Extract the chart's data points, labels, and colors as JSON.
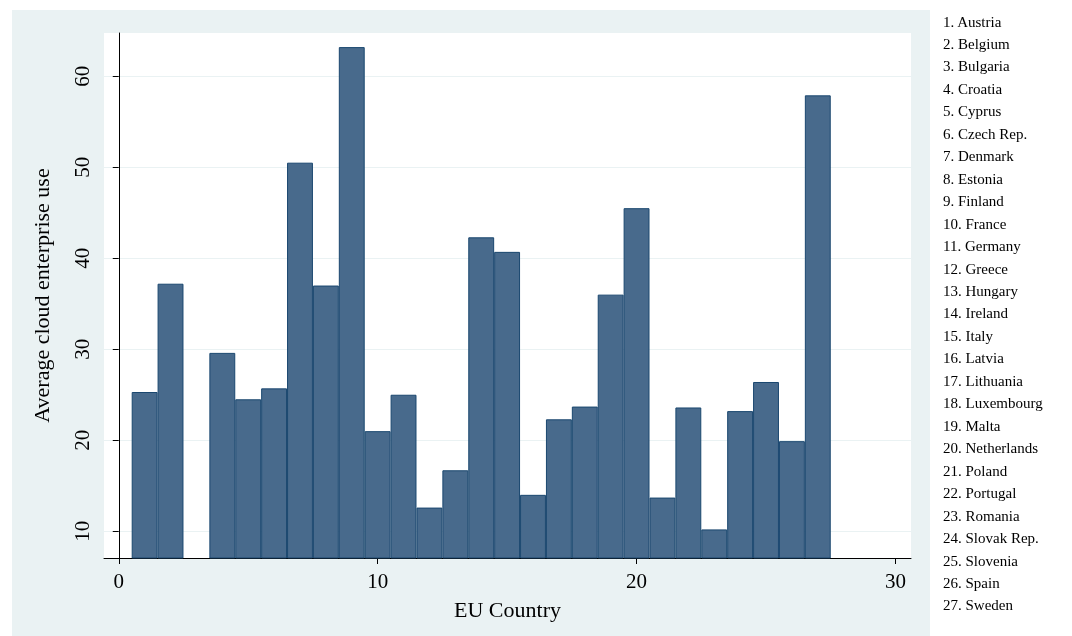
{
  "chart_data": {
    "type": "bar",
    "xlabel": "EU Country",
    "ylabel": "Average cloud enterprise use",
    "x": [
      1,
      2,
      4,
      5,
      6,
      7,
      8,
      9,
      10,
      11,
      12,
      13,
      14,
      15,
      16,
      17,
      18,
      19,
      20,
      21,
      22,
      23,
      24,
      25,
      26,
      27
    ],
    "values": [
      25.3,
      37.2,
      29.6,
      24.5,
      25.7,
      50.5,
      37.0,
      63.2,
      21.0,
      25.0,
      12.6,
      16.7,
      42.3,
      40.7,
      14.0,
      22.3,
      23.7,
      36.0,
      45.5,
      13.7,
      23.6,
      10.2,
      23.2,
      26.4,
      19.9,
      57.9
    ],
    "color": "#486a8c",
    "xlim": [
      -0.57,
      30.6
    ],
    "xticks": [
      0,
      10,
      20,
      30
    ],
    "ylim": [
      7.06,
      64.75
    ],
    "yticks": [
      10,
      20,
      30,
      40,
      50,
      60
    ],
    "grid": "y",
    "annotations": [
      "1. Austria",
      "2. Belgium",
      "3. Bulgaria",
      "4. Croatia",
      "5. Cyprus",
      "6. Czech Rep.",
      "7. Denmark",
      "8. Estonia",
      "9. Finland",
      "10. France",
      "11. Germany",
      "12. Greece",
      "13. Hungary",
      "14. Ireland",
      "15. Italy",
      "16. Latvia",
      "17. Lithuania",
      "18. Luxembourg",
      "19. Malta",
      "20. Netherlands",
      "21. Poland",
      "22. Portugal",
      "23. Romania",
      "24. Slovak Rep.",
      "25. Slovenia",
      "26. Spain",
      "27. Sweden"
    ]
  }
}
